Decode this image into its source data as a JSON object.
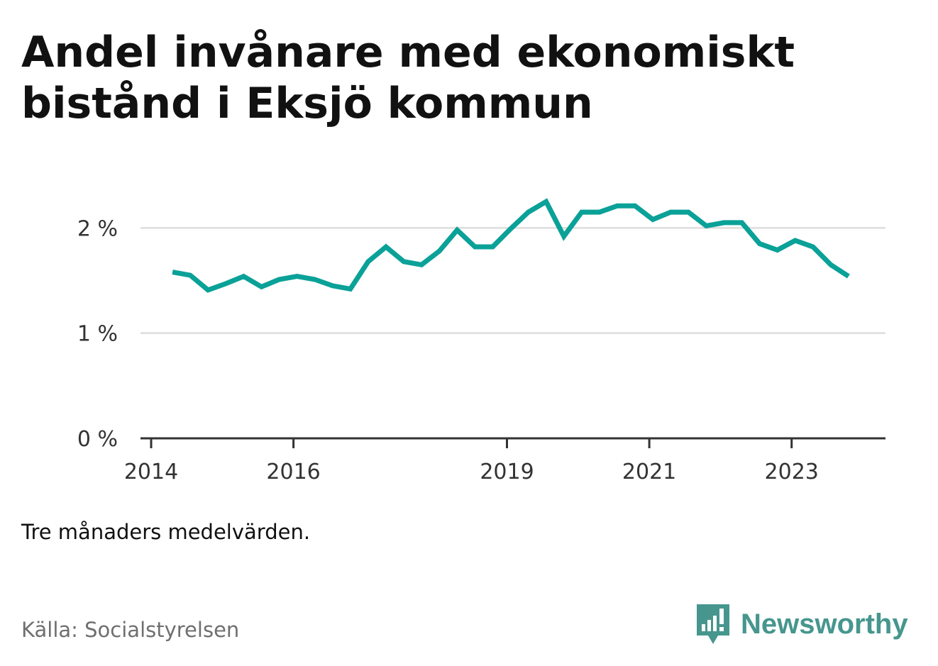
{
  "title": "Andel invånare med ekonomiskt bistånd i Eksjö kommun",
  "note": "Tre månaders medelvärden.",
  "source": "Källa: Socialstyrelsen",
  "brand": "Newsworthy",
  "colors": {
    "line": "#0aa198",
    "grid": "#dddddd",
    "axis": "#333333",
    "brand": "#46968e"
  },
  "chart_data": {
    "type": "line",
    "title": "Andel invånare med ekonomiskt bistånd i Eksjö kommun",
    "xlabel": "",
    "ylabel": "",
    "ylim": [
      0,
      2.4
    ],
    "xlim": [
      2014,
      2024.2
    ],
    "yticks": [
      {
        "value": 0,
        "label": "0 %"
      },
      {
        "value": 1,
        "label": "1 %"
      },
      {
        "value": 2,
        "label": "2 %"
      }
    ],
    "xticks": [
      {
        "value": 2014,
        "label": "2014"
      },
      {
        "value": 2016,
        "label": "2016"
      },
      {
        "value": 2019,
        "label": "2019"
      },
      {
        "value": 2021,
        "label": "2021"
      },
      {
        "value": 2023,
        "label": "2023"
      }
    ],
    "series": [
      {
        "name": "Andel invånare med ekonomiskt bistånd",
        "x": [
          2014.3,
          2014.55,
          2014.8,
          2015.05,
          2015.3,
          2015.55,
          2015.8,
          2016.05,
          2016.3,
          2016.55,
          2016.8,
          2017.05,
          2017.3,
          2017.55,
          2017.8,
          2018.05,
          2018.3,
          2018.55,
          2018.8,
          2019.05,
          2019.3,
          2019.55,
          2019.8,
          2020.05,
          2020.3,
          2020.55,
          2020.8,
          2021.05,
          2021.3,
          2021.55,
          2021.8,
          2022.05,
          2022.3,
          2022.55,
          2022.8,
          2023.05,
          2023.3,
          2023.55,
          2023.8
        ],
        "values": [
          1.58,
          1.55,
          1.41,
          1.47,
          1.54,
          1.44,
          1.51,
          1.54,
          1.51,
          1.45,
          1.42,
          1.68,
          1.82,
          1.68,
          1.65,
          1.78,
          1.98,
          1.82,
          1.82,
          1.99,
          2.15,
          2.25,
          1.92,
          2.15,
          2.15,
          2.21,
          2.21,
          2.08,
          2.15,
          2.15,
          2.02,
          2.05,
          2.05,
          1.85,
          1.79,
          1.88,
          1.82,
          1.65,
          1.54
        ]
      }
    ]
  }
}
